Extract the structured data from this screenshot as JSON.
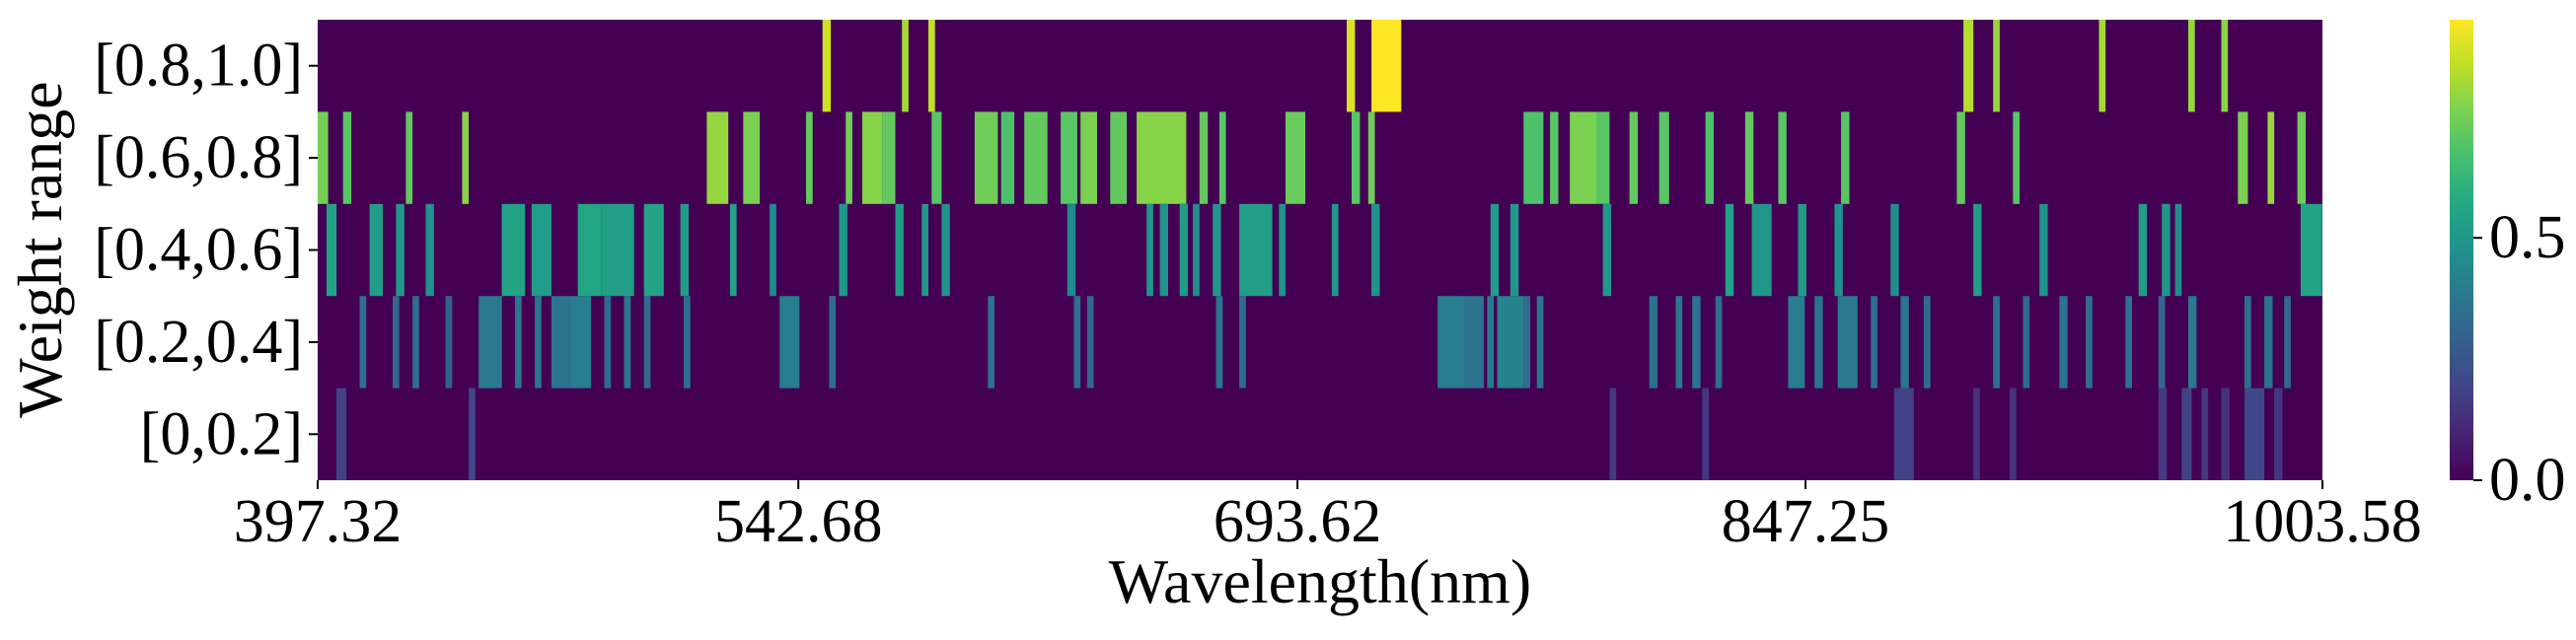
{
  "chart_data": {
    "type": "heatmap",
    "title": "",
    "xlabel": "Wavelength(nm)",
    "ylabel": "Weight range",
    "x_range_nm": [
      397.32,
      1003.58
    ],
    "x_ticks": [
      "397.32",
      "542.68",
      "693.62",
      "847.25",
      "1003.58"
    ],
    "x_tick_values": [
      397.32,
      542.68,
      693.62,
      847.25,
      1003.58
    ],
    "y_rows": [
      "[0.8,1.0]",
      "[0.6,0.8]",
      "[0.4,0.6]",
      "[0.2,0.4]",
      "[0,0.2]"
    ],
    "colormap": "viridis",
    "colorbar": {
      "min": 0.0,
      "max": 0.95,
      "ticks": [
        0.0,
        0.5
      ],
      "tick_labels": [
        "0.0",
        "0.5"
      ]
    },
    "background_value": 0.0,
    "nonzero_cells": [
      {
        "row": "[0.8,1.0]",
        "cells": [
          [
            550.0,
            552.5,
            0.88
          ],
          [
            574.0,
            576.0,
            0.82
          ],
          [
            582.0,
            584.0,
            0.86
          ],
          [
            708.5,
            711.0,
            0.9
          ],
          [
            716.0,
            725.0,
            0.95
          ],
          [
            895.0,
            898.0,
            0.84
          ],
          [
            904.0,
            906.0,
            0.8
          ],
          [
            936.0,
            938.0,
            0.82
          ],
          [
            963.0,
            965.0,
            0.8
          ],
          [
            973.0,
            975.0,
            0.78
          ]
        ]
      },
      {
        "row": "[0.6,0.8]",
        "cells": [
          [
            397.3,
            400.5,
            0.75
          ],
          [
            405.0,
            407.5,
            0.7
          ],
          [
            424.0,
            426.0,
            0.72
          ],
          [
            441.0,
            443.0,
            0.78
          ],
          [
            515.0,
            521.5,
            0.8
          ],
          [
            526.0,
            531.0,
            0.76
          ],
          [
            545.0,
            547.0,
            0.72
          ],
          [
            557.0,
            559.0,
            0.74
          ],
          [
            562.0,
            568.0,
            0.78
          ],
          [
            568.0,
            572.0,
            0.72
          ],
          [
            583.0,
            586.0,
            0.7
          ],
          [
            596.0,
            603.0,
            0.74
          ],
          [
            604.0,
            608.0,
            0.68
          ],
          [
            611.0,
            618.0,
            0.72
          ],
          [
            622.0,
            627.0,
            0.7
          ],
          [
            628.0,
            633.0,
            0.76
          ],
          [
            637.0,
            642.0,
            0.72
          ],
          [
            645.0,
            660.0,
            0.78
          ],
          [
            664.0,
            666.5,
            0.72
          ],
          [
            670.0,
            672.0,
            0.7
          ],
          [
            690.0,
            696.0,
            0.73
          ],
          [
            710.0,
            712.5,
            0.7
          ],
          [
            715.0,
            717.0,
            0.74
          ],
          [
            762.0,
            768.0,
            0.68
          ],
          [
            770.0,
            772.5,
            0.7
          ],
          [
            776.0,
            784.0,
            0.76
          ],
          [
            784.0,
            788.0,
            0.7
          ],
          [
            794.0,
            796.5,
            0.72
          ],
          [
            803.0,
            806.0,
            0.7
          ],
          [
            817.0,
            819.5,
            0.68
          ],
          [
            829.0,
            831.5,
            0.72
          ],
          [
            839.0,
            841.5,
            0.7
          ],
          [
            858.0,
            860.5,
            0.7
          ],
          [
            893.0,
            895.5,
            0.72
          ],
          [
            910.0,
            912.0,
            0.7
          ],
          [
            978.0,
            981.0,
            0.76
          ],
          [
            987.0,
            989.0,
            0.8
          ],
          [
            996.0,
            998.5,
            0.74
          ]
        ]
      },
      {
        "row": "[0.4,0.6]",
        "cells": [
          [
            400.0,
            403.0,
            0.55
          ],
          [
            413.0,
            417.0,
            0.52
          ],
          [
            421.0,
            423.5,
            0.5
          ],
          [
            430.0,
            432.5,
            0.48
          ],
          [
            453.0,
            460.0,
            0.55
          ],
          [
            462.0,
            468.0,
            0.52
          ],
          [
            476.0,
            483.0,
            0.56
          ],
          [
            483.0,
            493.0,
            0.53
          ],
          [
            496.0,
            502.0,
            0.55
          ],
          [
            507.0,
            509.5,
            0.52
          ],
          [
            522.0,
            524.0,
            0.54
          ],
          [
            534.0,
            536.0,
            0.45
          ],
          [
            555.0,
            557.5,
            0.5
          ],
          [
            572.0,
            574.5,
            0.52
          ],
          [
            580.0,
            582.0,
            0.5
          ],
          [
            586.0,
            588.5,
            0.48
          ],
          [
            624.0,
            626.5,
            0.45
          ],
          [
            648.0,
            650.0,
            0.5
          ],
          [
            652.0,
            654.5,
            0.48
          ],
          [
            658.0,
            660.5,
            0.52
          ],
          [
            662.0,
            664.0,
            0.46
          ],
          [
            668.0,
            670.5,
            0.5
          ],
          [
            676.0,
            686.0,
            0.53
          ],
          [
            688.0,
            690.0,
            0.48
          ],
          [
            704.0,
            706.0,
            0.5
          ],
          [
            716.0,
            718.5,
            0.48
          ],
          [
            752.0,
            754.5,
            0.52
          ],
          [
            758.0,
            760.5,
            0.5
          ],
          [
            786.0,
            788.5,
            0.5
          ],
          [
            823.0,
            825.5,
            0.54
          ],
          [
            831.0,
            837.0,
            0.5
          ],
          [
            845.0,
            847.5,
            0.52
          ],
          [
            856.0,
            858.5,
            0.48
          ],
          [
            873.0,
            875.5,
            0.46
          ],
          [
            898.0,
            900.5,
            0.52
          ],
          [
            918.0,
            920.5,
            0.48
          ],
          [
            948.0,
            950.5,
            0.52
          ],
          [
            955.0,
            957.5,
            0.5
          ],
          [
            959.0,
            961.0,
            0.46
          ],
          [
            997.0,
            1003.5,
            0.55
          ]
        ]
      },
      {
        "row": "[0.2,0.4]",
        "cells": [
          [
            410.0,
            412.0,
            0.35
          ],
          [
            420.0,
            422.0,
            0.32
          ],
          [
            426.0,
            428.0,
            0.34
          ],
          [
            436.0,
            438.0,
            0.3
          ],
          [
            446.0,
            453.0,
            0.38
          ],
          [
            457.0,
            459.0,
            0.36
          ],
          [
            463.0,
            465.0,
            0.38
          ],
          [
            468.0,
            474.0,
            0.36
          ],
          [
            474.0,
            480.0,
            0.4
          ],
          [
            484.0,
            486.0,
            0.34
          ],
          [
            490.0,
            492.0,
            0.38
          ],
          [
            496.0,
            498.0,
            0.33
          ],
          [
            508.0,
            510.0,
            0.35
          ],
          [
            537.0,
            543.0,
            0.4
          ],
          [
            552.0,
            554.0,
            0.34
          ],
          [
            600.0,
            602.0,
            0.36
          ],
          [
            626.0,
            628.0,
            0.34
          ],
          [
            630.0,
            632.0,
            0.32
          ],
          [
            669.0,
            671.0,
            0.38
          ],
          [
            676.0,
            678.0,
            0.34
          ],
          [
            736.0,
            744.0,
            0.4
          ],
          [
            744.0,
            750.0,
            0.36
          ],
          [
            751.0,
            753.0,
            0.38
          ],
          [
            754.0,
            762.0,
            0.42
          ],
          [
            762.0,
            764.0,
            0.34
          ],
          [
            766.0,
            768.0,
            0.36
          ],
          [
            800.0,
            802.5,
            0.35
          ],
          [
            808.0,
            810.0,
            0.38
          ],
          [
            813.0,
            815.5,
            0.36
          ],
          [
            820.0,
            822.0,
            0.34
          ],
          [
            842.0,
            847.0,
            0.4
          ],
          [
            850.0,
            852.5,
            0.36
          ],
          [
            857.0,
            863.0,
            0.38
          ],
          [
            867.0,
            869.0,
            0.34
          ],
          [
            876.0,
            878.5,
            0.36
          ],
          [
            883.0,
            885.0,
            0.34
          ],
          [
            904.0,
            906.0,
            0.35
          ],
          [
            913.0,
            915.0,
            0.32
          ],
          [
            924.0,
            926.5,
            0.36
          ],
          [
            932.0,
            934.0,
            0.34
          ],
          [
            944.0,
            946.0,
            0.36
          ],
          [
            954.0,
            956.0,
            0.32
          ],
          [
            963.0,
            965.5,
            0.38
          ],
          [
            980.0,
            982.0,
            0.34
          ],
          [
            986.0,
            988.5,
            0.36
          ],
          [
            992.0,
            994.0,
            0.32
          ]
        ]
      },
      {
        "row": "[0,0.2]",
        "cells": [
          [
            403.0,
            406.0,
            0.18
          ],
          [
            443.0,
            445.0,
            0.2
          ],
          [
            788.0,
            790.0,
            0.16
          ],
          [
            816.0,
            818.0,
            0.15
          ],
          [
            874.0,
            880.0,
            0.18
          ],
          [
            898.0,
            900.0,
            0.14
          ],
          [
            909.0,
            911.0,
            0.14
          ],
          [
            954.0,
            956.5,
            0.16
          ],
          [
            961.0,
            964.0,
            0.18
          ],
          [
            967.0,
            969.0,
            0.16
          ],
          [
            973.0,
            975.5,
            0.14
          ],
          [
            980.0,
            986.0,
            0.2
          ],
          [
            989.0,
            991.5,
            0.15
          ]
        ]
      }
    ]
  }
}
